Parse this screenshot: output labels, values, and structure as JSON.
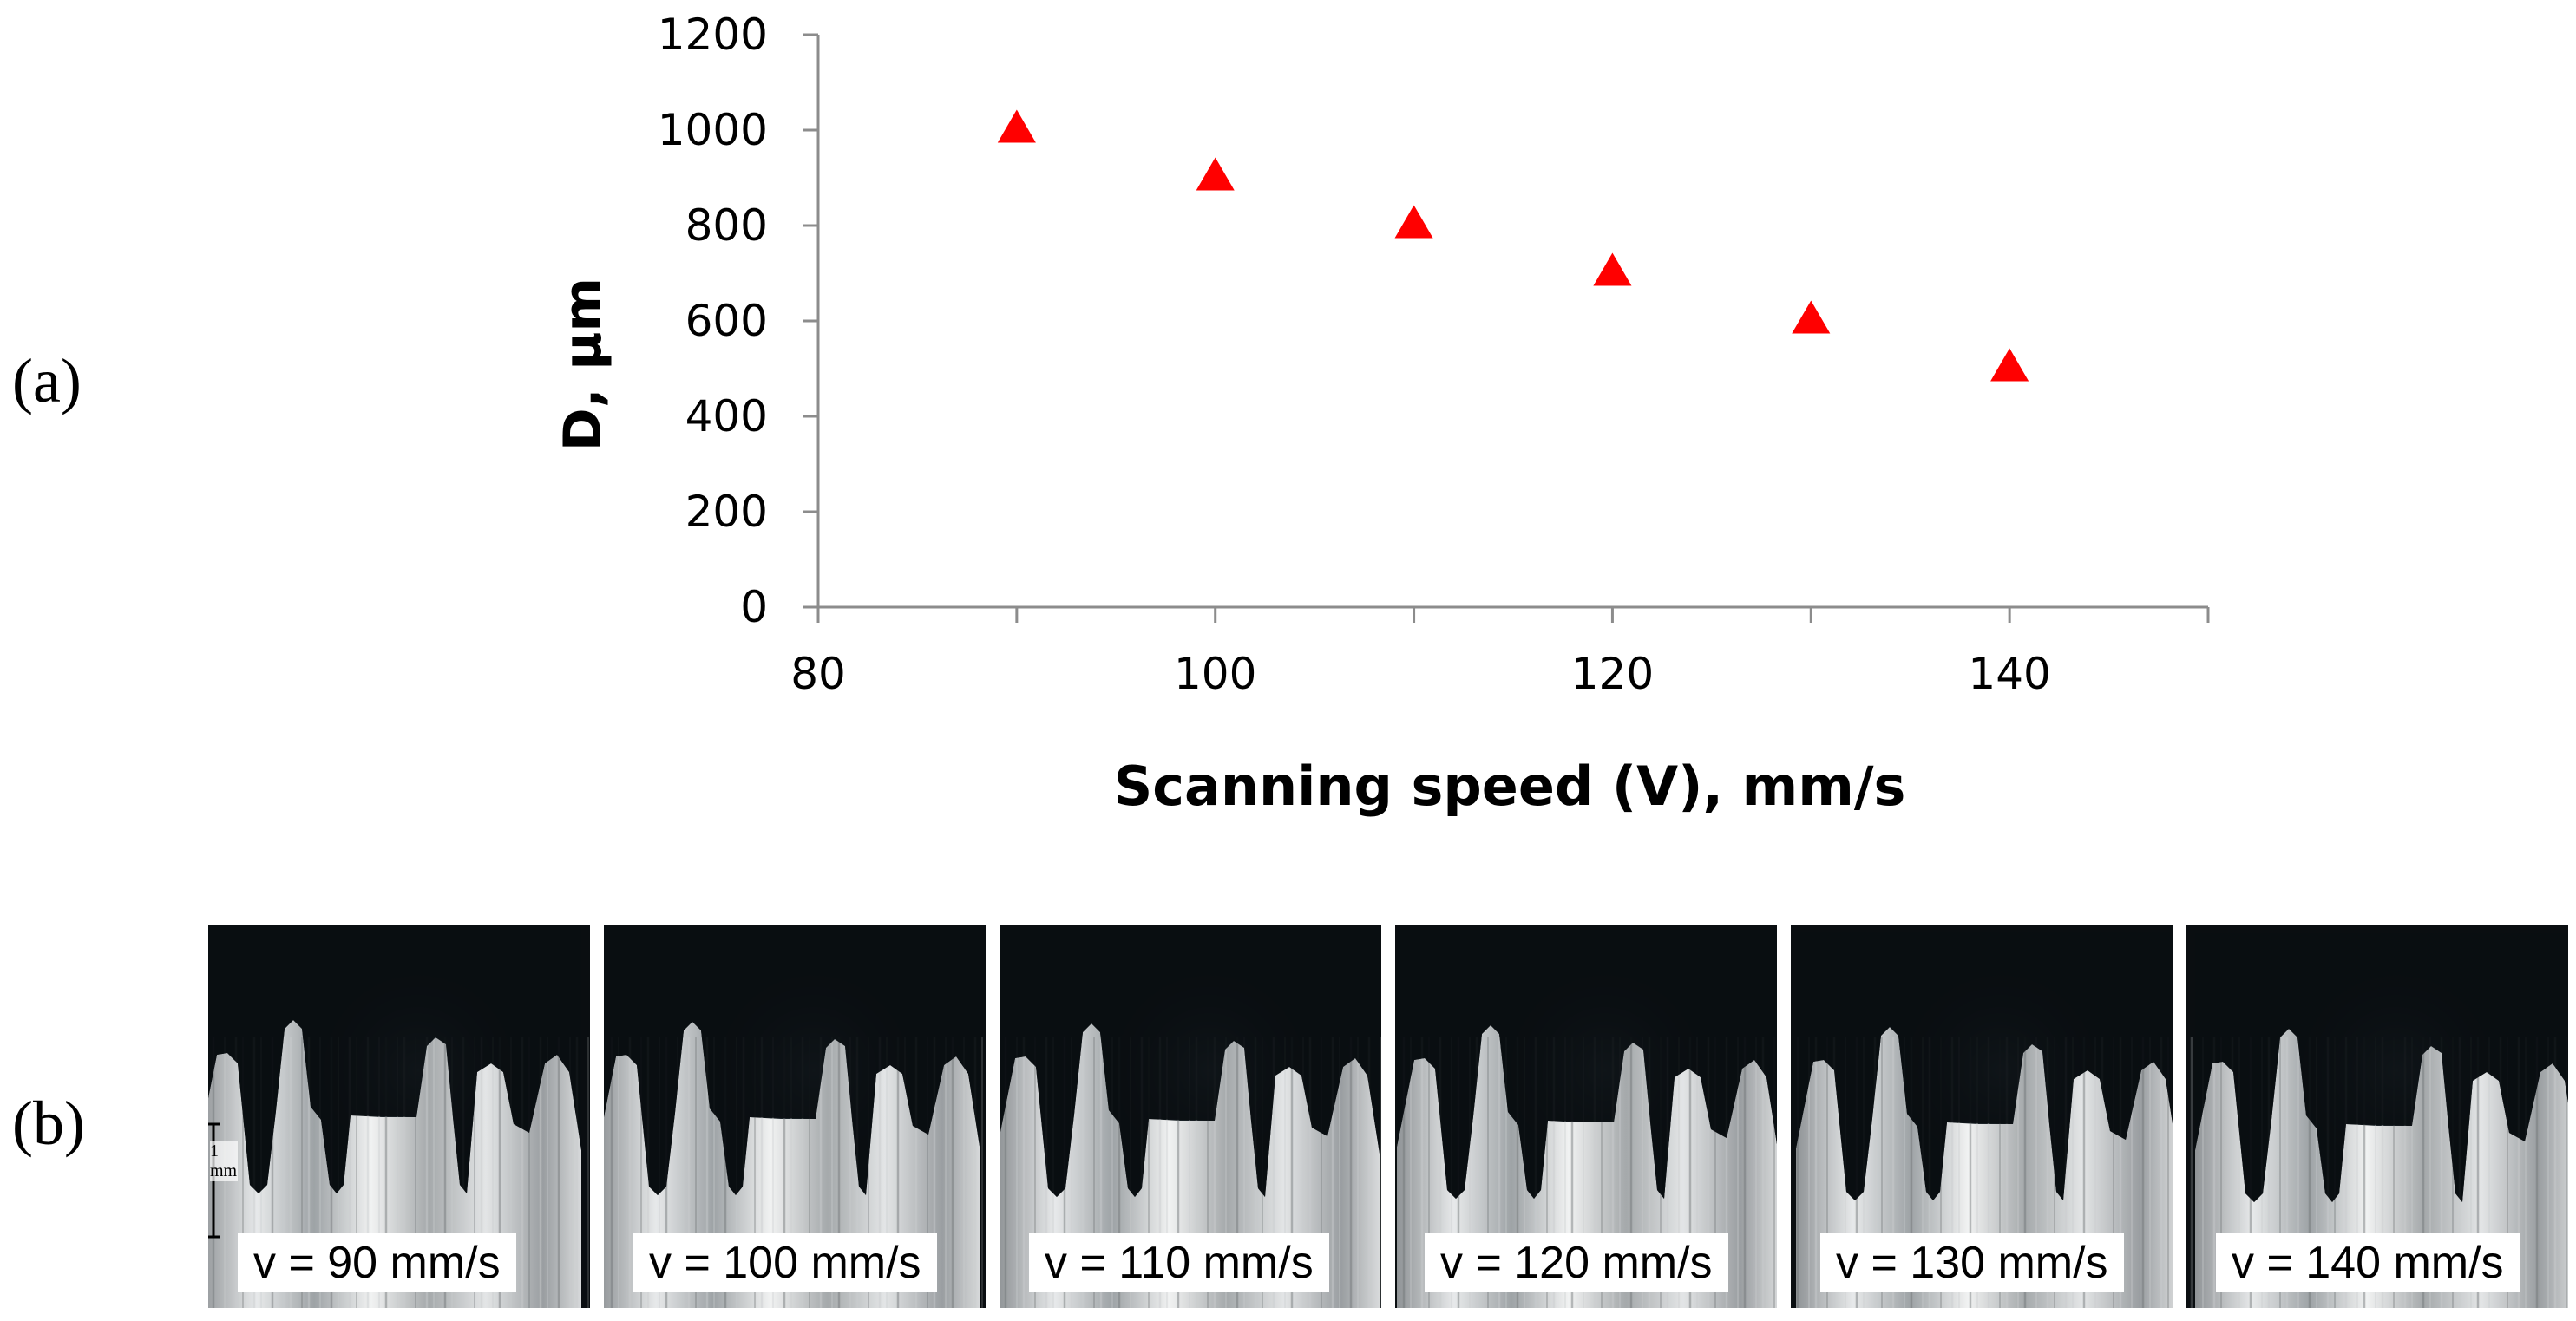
{
  "panels": {
    "a": "(a)",
    "b": "(b)"
  },
  "chart_data": {
    "type": "scatter",
    "x": [
      90,
      100,
      110,
      120,
      130,
      140
    ],
    "y": [
      1000,
      900,
      800,
      700,
      600,
      500
    ],
    "xlabel": "Scanning speed (V), mm/s",
    "ylabel": "D, μm",
    "xlim": [
      80,
      150
    ],
    "ylim": [
      0,
      1200
    ],
    "xticks": [
      "80",
      "100",
      "120",
      "140"
    ],
    "yticks": [
      "0",
      "200",
      "400",
      "600",
      "800",
      "1000",
      "1200"
    ],
    "marker": "triangle",
    "marker_color": "#ff0000",
    "grid": false
  },
  "micrographs": [
    {
      "caption": "v = 90 mm/s"
    },
    {
      "caption": "v = 100 mm/s"
    },
    {
      "caption": "v = 110 mm/s"
    },
    {
      "caption": "v = 120 mm/s"
    },
    {
      "caption": "v = 130 mm/s"
    },
    {
      "caption": "v = 140 mm/s"
    }
  ],
  "scale_bar": "1 mm"
}
